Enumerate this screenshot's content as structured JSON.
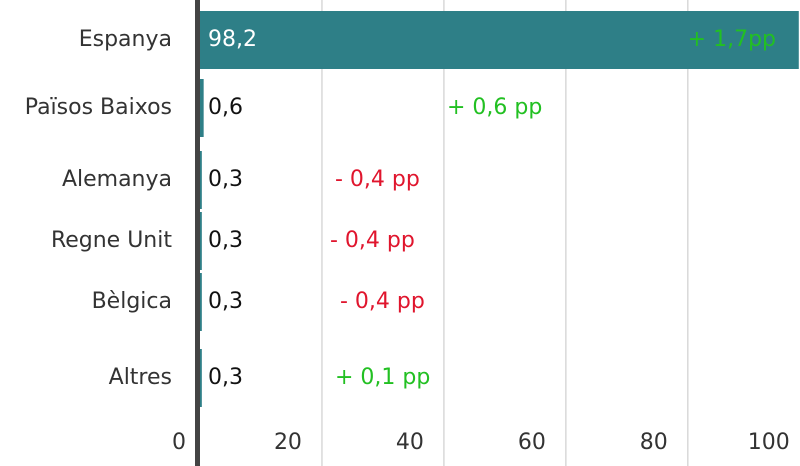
{
  "chart_data": {
    "type": "hbar",
    "categories": [
      "Espanya",
      "Països Baixos",
      "Alemanya",
      "Regne Unit",
      "Bèlgica",
      "Altres"
    ],
    "values": [
      98.2,
      0.6,
      0.3,
      0.3,
      0.3,
      0.3
    ],
    "value_labels": [
      "98,2",
      "0,6",
      "0,3",
      "0,3",
      "0,3",
      "0,3"
    ],
    "color": "#2e7f87",
    "annotations": [
      {
        "label": "+ 1,7pp",
        "color": "#22c022"
      },
      {
        "label": "+ 0,6 pp",
        "color": "#22c022"
      },
      {
        "label": "- 0,4 pp",
        "color": "#e0152d"
      },
      {
        "label": "- 0,4 pp",
        "color": "#e0152d"
      },
      {
        "label": "- 0,4 pp",
        "color": "#e0152d"
      },
      {
        "label": "+ 0,1 pp",
        "color": "#22c022"
      }
    ],
    "xlim": [
      0,
      98.4
    ],
    "xticks": [
      0,
      20,
      40,
      60,
      80,
      100
    ],
    "grid": true
  }
}
